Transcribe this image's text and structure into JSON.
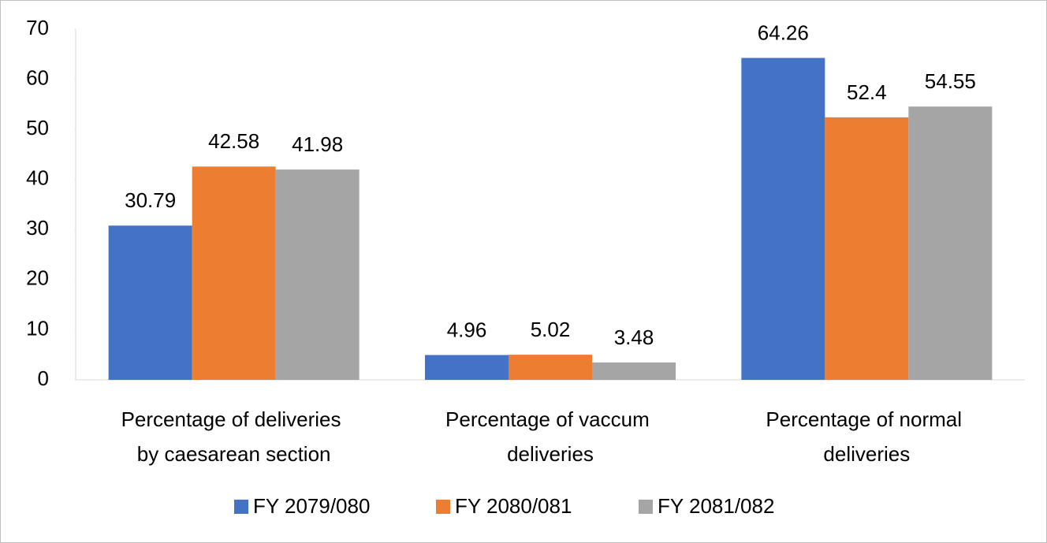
{
  "chart_data": {
    "type": "bar",
    "categories": [
      "Percentage of deliveries by caesarean section",
      "Percentage of vaccum deliveries",
      "Percentage of normal deliveries"
    ],
    "series": [
      {
        "name": "FY 2079/080",
        "color": "#4472c4",
        "values": [
          30.79,
          4.96,
          64.26
        ]
      },
      {
        "name": "FY 2080/081",
        "color": "#ed7d31",
        "values": [
          42.58,
          5.02,
          52.4
        ]
      },
      {
        "name": "FY 2081/082",
        "color": "#a5a5a5",
        "values": [
          41.98,
          3.48,
          54.55
        ]
      }
    ],
    "ylim": [
      0,
      70
    ],
    "yticks": [
      0,
      10,
      20,
      30,
      40,
      50,
      60,
      70
    ],
    "legend": "bottom"
  }
}
